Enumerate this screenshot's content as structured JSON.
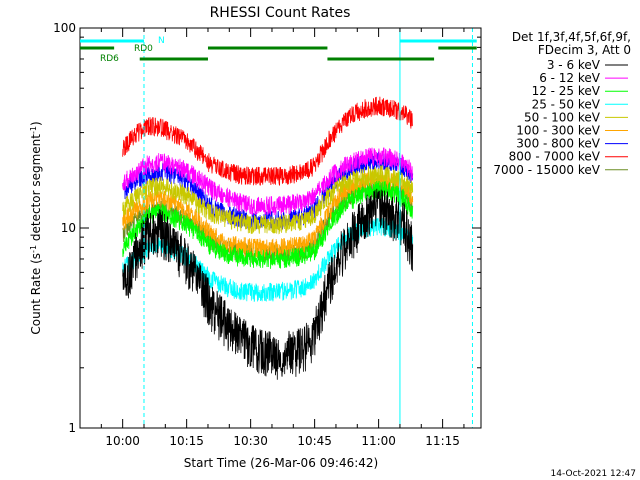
{
  "chart_data": {
    "type": "line",
    "title": "RHESSI Count Rates",
    "xlabel": "Start Time (26-Mar-06 09:46:42)",
    "ylabel_parts": [
      "Count Rate (s",
      "-1",
      " detector segment",
      "-1",
      ")"
    ],
    "y_scale": "log",
    "ylim": [
      1,
      100
    ],
    "xlim": [
      "09:50",
      "11:24"
    ],
    "x_ticks": [
      "10:00",
      "10:15",
      "10:30",
      "10:45",
      "11:00",
      "11:15"
    ],
    "y_ticks": [
      "1",
      "10",
      "100"
    ],
    "legend_header": [
      "Det 1f,3f,4f,5f,6f,9f,",
      "FDecim 3, Att 0"
    ],
    "legend_position": "right",
    "grid": false,
    "footer_timestamp": "14-Oct-2021 12:47",
    "flags": [
      {
        "label": "N",
        "color": "#00ffff",
        "segments": [
          [
            "09:50",
            "10:05"
          ],
          [
            "11:05",
            "11:23"
          ]
        ]
      },
      {
        "label": "RD0",
        "color": "#008000",
        "segments": [
          [
            "09:50",
            "09:58"
          ],
          [
            "10:20",
            "10:48"
          ],
          [
            "11:14",
            "11:23"
          ]
        ]
      },
      {
        "label": "RD6",
        "color": "#008000",
        "segments": [
          [
            "10:04",
            "10:20"
          ],
          [
            "10:48",
            "11:13"
          ]
        ]
      }
    ],
    "vlines": [
      {
        "time": "10:05",
        "style": "dashed",
        "color": "#00ffff"
      },
      {
        "time": "11:05",
        "style": "solid",
        "color": "#00ffff"
      },
      {
        "time": "11:22",
        "style": "dashed",
        "color": "#00ffff"
      }
    ],
    "x": [
      "10:00",
      "10:03",
      "10:06",
      "10:09",
      "10:12",
      "10:15",
      "10:18",
      "10:21",
      "10:24",
      "10:27",
      "10:30",
      "10:33",
      "10:36",
      "10:39",
      "10:42",
      "10:45",
      "10:48",
      "10:51",
      "10:54",
      "10:57",
      "11:00",
      "11:03",
      "11:06",
      "11:08"
    ],
    "series": [
      {
        "name": "3 - 6 keV",
        "color": "#000000",
        "values": [
          5,
          7.5,
          9.5,
          9.8,
          8.3,
          7,
          5.4,
          4.1,
          3.4,
          2.9,
          2.6,
          2.5,
          2.4,
          2.4,
          2.5,
          3,
          5.2,
          7.5,
          9.6,
          11.5,
          12.5,
          12,
          10.5,
          8
        ]
      },
      {
        "name": "6 - 12 keV",
        "color": "#ff00ff",
        "values": [
          17,
          19,
          21,
          21.5,
          20.5,
          19.5,
          17.5,
          15.5,
          14.5,
          13.5,
          13,
          13,
          13,
          13.2,
          13.5,
          14.5,
          17.5,
          20,
          21.5,
          22.5,
          23,
          22.5,
          21,
          19
        ]
      },
      {
        "name": "12 - 25 keV",
        "color": "#00ff00",
        "values": [
          8,
          9.7,
          11.6,
          12,
          11.3,
          10.4,
          9.2,
          8,
          7.5,
          7.2,
          7,
          7,
          7,
          7.1,
          7.2,
          7.8,
          10,
          12.5,
          14,
          15,
          15.6,
          15.2,
          14,
          12
        ]
      },
      {
        "name": "25 - 50 keV",
        "color": "#00ffff",
        "values": [
          6.3,
          7.1,
          8.1,
          8.2,
          7.7,
          7.2,
          6.3,
          5.5,
          5.1,
          4.9,
          4.8,
          4.8,
          4.8,
          4.9,
          5,
          5.5,
          7,
          8.5,
          9.5,
          10,
          10.3,
          10,
          9.5,
          8.5
        ]
      },
      {
        "name": "50 - 100 keV",
        "color": "#c8c800",
        "values": [
          12.4,
          14.3,
          15.8,
          16.5,
          15.6,
          14.6,
          13,
          11.9,
          11.2,
          10.8,
          10.5,
          10.5,
          10.5,
          10.6,
          10.8,
          11.8,
          14.3,
          16.3,
          17.4,
          18.3,
          18.7,
          18.2,
          17,
          15.5
        ]
      },
      {
        "name": "100 - 300 keV",
        "color": "#ffa500",
        "values": [
          10.8,
          12.3,
          13.8,
          14.1,
          13.3,
          12.4,
          10.8,
          9.2,
          8.5,
          8.2,
          8,
          8,
          8,
          8.1,
          8.2,
          9,
          11.8,
          14.5,
          16,
          17.1,
          17.6,
          17.2,
          16,
          14
        ]
      },
      {
        "name": "300 - 800 keV",
        "color": "#0000ff",
        "values": [
          15.2,
          17.2,
          18.8,
          19.2,
          18.3,
          17.2,
          14.8,
          12.7,
          11.8,
          11.3,
          11,
          11,
          11,
          11.1,
          11.4,
          12.5,
          15.8,
          18.5,
          20.2,
          21.2,
          21.8,
          21.3,
          20,
          17.5
        ]
      },
      {
        "name": "800 - 7000 keV",
        "color": "#ff0000",
        "values": [
          25,
          29.5,
          32.5,
          32,
          29.5,
          27,
          23.8,
          20.5,
          19.3,
          18.6,
          18.2,
          18.2,
          18.2,
          18.5,
          19,
          20.5,
          27,
          33,
          37,
          40,
          41,
          40,
          37.5,
          34
        ]
      },
      {
        "name": "7000 - 15000 keV",
        "color": "#6b8e23",
        "values": [
          9.5,
          11,
          12.4,
          12.8,
          12,
          11.2,
          9.9,
          8.5,
          7.9,
          7.6,
          7.4,
          7.4,
          7.4,
          7.5,
          7.6,
          8.4,
          10.9,
          13.4,
          14.9,
          15.8,
          16.2,
          15.8,
          14.8,
          13
        ]
      }
    ]
  }
}
